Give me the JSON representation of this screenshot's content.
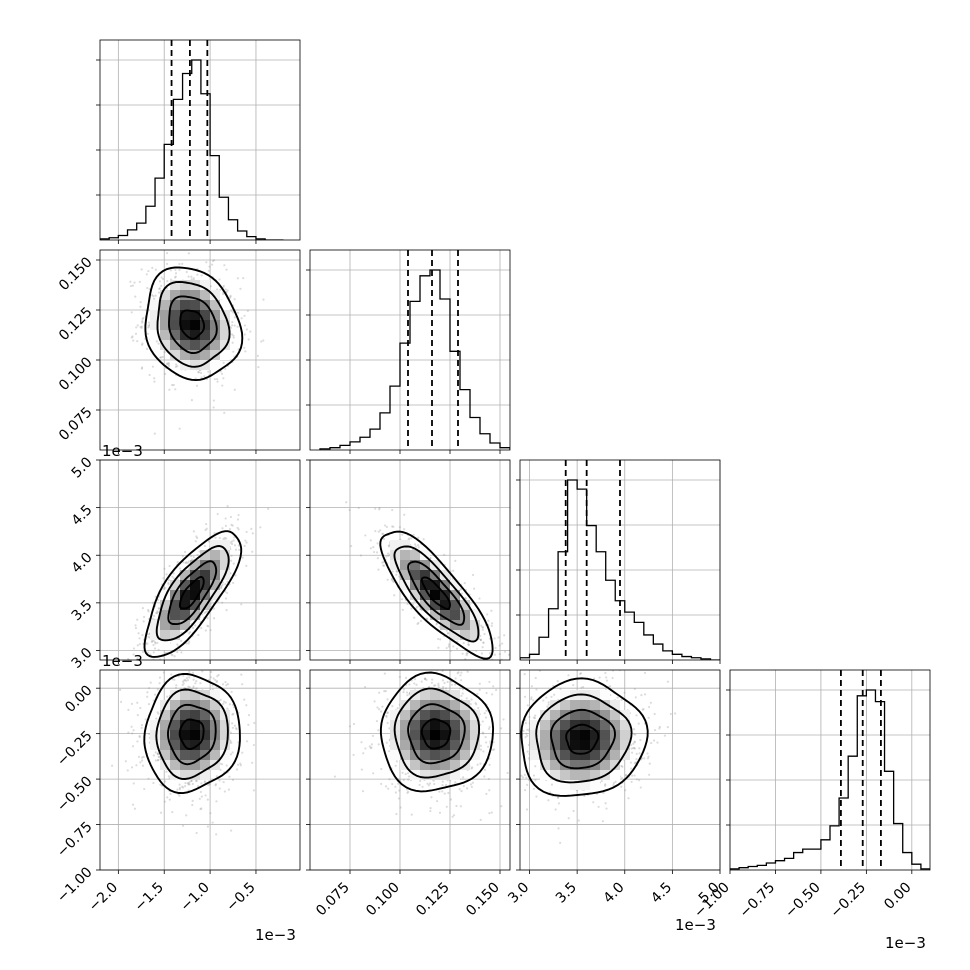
{
  "chart_data": {
    "type": "corner",
    "layout": "lower-triangular 4x4 grid",
    "grid": true,
    "parameters": [
      {
        "range": [
          -2.2,
          -0.02
        ],
        "ticks": [
          -2.0,
          -1.5,
          -1.0,
          -0.5
        ],
        "tick_labels": [
          "−2.0",
          "−1.5",
          "−1.0",
          "−0.5"
        ],
        "offset_label": "1e−3",
        "quantiles": [
          -1.42,
          -1.22,
          -1.03
        ]
      },
      {
        "range": [
          0.055,
          0.155
        ],
        "ticks": [
          0.075,
          0.1,
          0.125,
          0.15
        ],
        "tick_labels": [
          "0.075",
          "0.100",
          "0.125",
          "0.150"
        ],
        "offset_label": "",
        "quantiles": [
          0.104,
          0.116,
          0.129
        ]
      },
      {
        "range": [
          2.9,
          5.0
        ],
        "ticks": [
          3.0,
          3.5,
          4.0,
          4.5,
          5.0
        ],
        "tick_labels": [
          "3.0",
          "3.5",
          "4.0",
          "4.5",
          "5.0"
        ],
        "offset_label": "1e−3",
        "quantiles": [
          3.38,
          3.6,
          3.95
        ]
      },
      {
        "range": [
          -1.0,
          0.1
        ],
        "ticks": [
          -1.0,
          -0.75,
          -0.5,
          -0.25,
          0.0
        ],
        "tick_labels": [
          "−1.00",
          "−0.75",
          "−0.50",
          "−0.25",
          "0.00"
        ],
        "offset_label": "1e−3",
        "quantiles": [
          -0.39,
          -0.27,
          -0.17
        ]
      }
    ],
    "histograms": [
      {
        "param": 0,
        "bin_edges": [
          -2.2,
          -2.1,
          -2.0,
          -1.9,
          -1.8,
          -1.7,
          -1.6,
          -1.5,
          -1.4,
          -1.3,
          -1.2,
          -1.1,
          -1.0,
          -0.9,
          -0.8,
          -0.7,
          -0.6,
          -0.5,
          -0.4,
          -0.3,
          -0.2
        ],
        "counts": [
          1,
          2,
          4,
          9,
          15,
          30,
          55,
          85,
          125,
          148,
          160,
          130,
          75,
          38,
          18,
          8,
          3,
          1,
          0,
          0
        ]
      },
      {
        "param": 1,
        "bin_edges": [
          0.06,
          0.065,
          0.07,
          0.075,
          0.08,
          0.085,
          0.09,
          0.095,
          0.1,
          0.105,
          0.11,
          0.115,
          0.12,
          0.125,
          0.13,
          0.135,
          0.14,
          0.145,
          0.15,
          0.155
        ],
        "counts": [
          1,
          2,
          4,
          7,
          11,
          18,
          32,
          55,
          92,
          128,
          150,
          155,
          130,
          85,
          52,
          28,
          14,
          6,
          2
        ]
      },
      {
        "param": 2,
        "bin_edges": [
          2.9,
          3.0,
          3.1,
          3.2,
          3.3,
          3.4,
          3.5,
          3.6,
          3.7,
          3.8,
          3.9,
          4.0,
          4.1,
          4.2,
          4.3,
          4.4,
          4.5,
          4.6,
          4.7,
          4.8,
          4.9,
          5.0
        ],
        "counts": [
          2,
          5,
          20,
          45,
          95,
          158,
          150,
          118,
          95,
          70,
          52,
          42,
          33,
          22,
          14,
          8,
          5,
          3,
          2,
          1,
          0
        ]
      },
      {
        "param": 3,
        "bin_edges": [
          -1.0,
          -0.95,
          -0.9,
          -0.85,
          -0.8,
          -0.75,
          -0.7,
          -0.65,
          -0.6,
          -0.55,
          -0.5,
          -0.45,
          -0.4,
          -0.35,
          -0.3,
          -0.25,
          -0.2,
          -0.15,
          -0.1,
          -0.05,
          0.0,
          0.05,
          0.1
        ],
        "counts": [
          1,
          2,
          3,
          4,
          6,
          8,
          10,
          15,
          18,
          18,
          26,
          38,
          62,
          98,
          150,
          155,
          145,
          85,
          40,
          15,
          5,
          1
        ]
      }
    ],
    "pairs": [
      {
        "x_param": 0,
        "y_param": 1,
        "center": [
          -1.2,
          0.118
        ],
        "sd": [
          0.26,
          0.014
        ],
        "corr": -0.15,
        "contour_levels": [
          0.5,
          1.0,
          1.5,
          2.0
        ]
      },
      {
        "x_param": 0,
        "y_param": 2,
        "center": [
          -1.2,
          3.6
        ],
        "sd": [
          0.26,
          0.33
        ],
        "corr": 0.75,
        "contour_levels": [
          0.5,
          1.0,
          1.5,
          2.0
        ]
      },
      {
        "x_param": 1,
        "y_param": 2,
        "center": [
          0.118,
          3.6
        ],
        "sd": [
          0.014,
          0.33
        ],
        "corr": -0.82,
        "contour_levels": [
          0.5,
          1.0,
          1.5,
          2.0
        ]
      },
      {
        "x_param": 0,
        "y_param": 3,
        "center": [
          -1.2,
          -0.25
        ],
        "sd": [
          0.26,
          0.16
        ],
        "corr": 0.05,
        "contour_levels": [
          0.5,
          1.0,
          1.5,
          2.0
        ]
      },
      {
        "x_param": 1,
        "y_param": 3,
        "center": [
          0.118,
          -0.25
        ],
        "sd": [
          0.014,
          0.16
        ],
        "corr": 0.0,
        "contour_levels": [
          0.5,
          1.0,
          1.5,
          2.0
        ]
      },
      {
        "x_param": 2,
        "y_param": 3,
        "center": [
          3.55,
          -0.28
        ],
        "sd": [
          0.33,
          0.16
        ],
        "corr": 0.05,
        "contour_levels": [
          0.5,
          1.0,
          1.5,
          2.0
        ]
      }
    ]
  }
}
